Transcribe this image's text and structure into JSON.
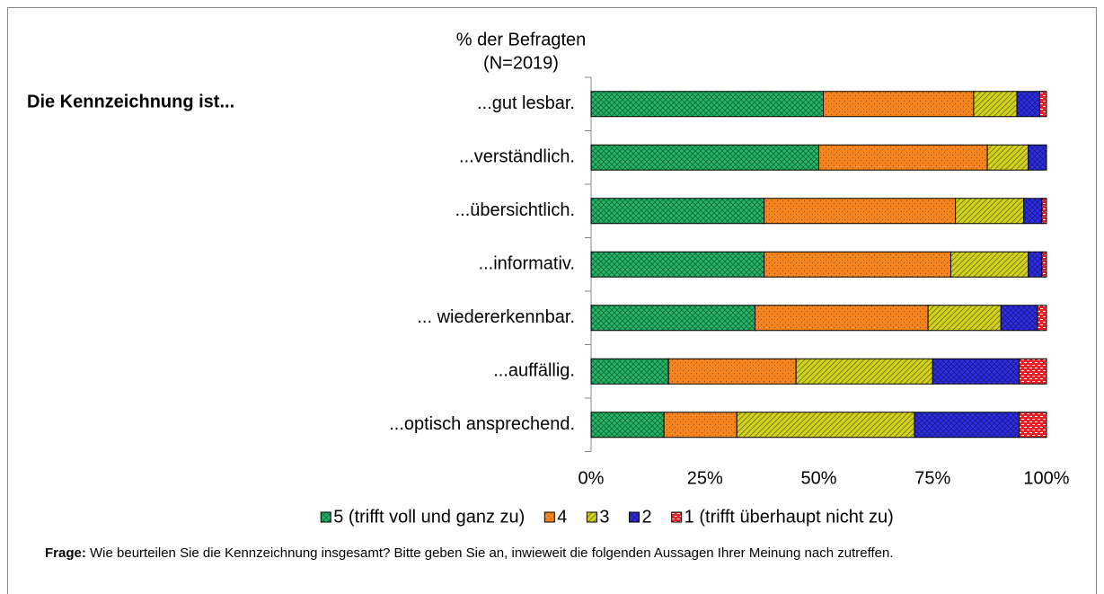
{
  "chart_data": {
    "type": "stacked-bar-horizontal",
    "title": "% der Befragten",
    "subtitle": "(N=2019)",
    "row_header": "Die Kennzeichnung ist...",
    "categories": [
      "...gut lesbar.",
      "...verständlich.",
      "...übersichtlich.",
      "...informativ.",
      "... wiedererkennbar.",
      "...auffällig.",
      "...optisch ansprechend."
    ],
    "series": [
      {
        "name": "5 (trifft voll und ganz zu)",
        "color": "#22b866",
        "values": [
          51,
          50,
          38,
          38,
          36,
          17,
          16
        ]
      },
      {
        "name": "4",
        "color": "#f7851f",
        "values": [
          33,
          37,
          42,
          41,
          38,
          28,
          16
        ]
      },
      {
        "name": "3",
        "color": "#d2d21a",
        "values": [
          9.5,
          9,
          15,
          17,
          16,
          30,
          39
        ]
      },
      {
        "name": "2",
        "color": "#2e2ee8",
        "values": [
          5,
          4,
          4,
          3,
          8,
          19,
          23
        ]
      },
      {
        "name": "1 (trifft überhaupt nicht zu)",
        "color": "#ee1c24",
        "values": [
          1.5,
          0,
          1,
          1,
          2,
          6,
          6
        ]
      }
    ],
    "xlim": [
      0,
      100
    ],
    "xticks": [
      {
        "value": 0,
        "label": "0%"
      },
      {
        "value": 25,
        "label": "25%"
      },
      {
        "value": 50,
        "label": "50%"
      },
      {
        "value": 75,
        "label": "75%"
      },
      {
        "value": 100,
        "label": "100%"
      }
    ],
    "legend": "bottom",
    "footer": {
      "label": "Frage:",
      "text": "Wie beurteilen Sie die Kennzeichnung insgesamt? Bitte geben Sie an, inwieweit die folgenden Aussagen Ihrer Meinung nach zutreffen."
    }
  }
}
